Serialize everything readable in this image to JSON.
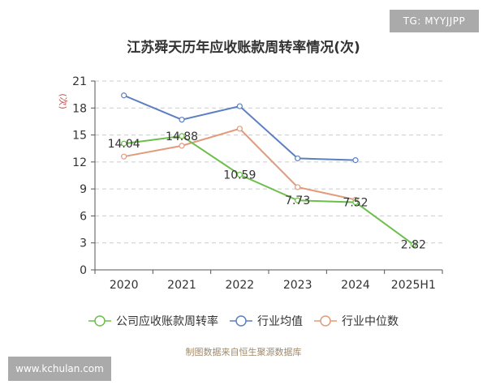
{
  "watermark_top": "TG: MYYJJPP",
  "watermark_bottom": "www.kchulan.com",
  "source": "制图数据来自恒生聚源数据库",
  "chart_data": {
    "type": "line",
    "title": "江苏舜天历年应收账款周转率情况(次)",
    "ylabel": "(次)",
    "categories": [
      "2020",
      "2021",
      "2022",
      "2023",
      "2024",
      "2025H1"
    ],
    "ylim": [
      0,
      21
    ],
    "yticks": [
      0,
      3,
      6,
      9,
      12,
      15,
      18,
      21
    ],
    "grid": true,
    "legend_position": "bottom",
    "series": [
      {
        "name": "公司应收账款周转率",
        "color": "#6bbf4a",
        "values": [
          14.04,
          14.88,
          10.59,
          7.73,
          7.52,
          2.82
        ],
        "labels": [
          "14.04",
          "14.88",
          "10.59",
          "7.73",
          "7.52",
          "2.82"
        ]
      },
      {
        "name": "行业均值",
        "color": "#5b7fc2",
        "values": [
          19.4,
          16.7,
          18.2,
          12.4,
          12.2,
          null
        ]
      },
      {
        "name": "行业中位数",
        "color": "#e39a7a",
        "values": [
          12.6,
          13.8,
          15.7,
          9.2,
          7.8,
          null
        ]
      }
    ]
  }
}
